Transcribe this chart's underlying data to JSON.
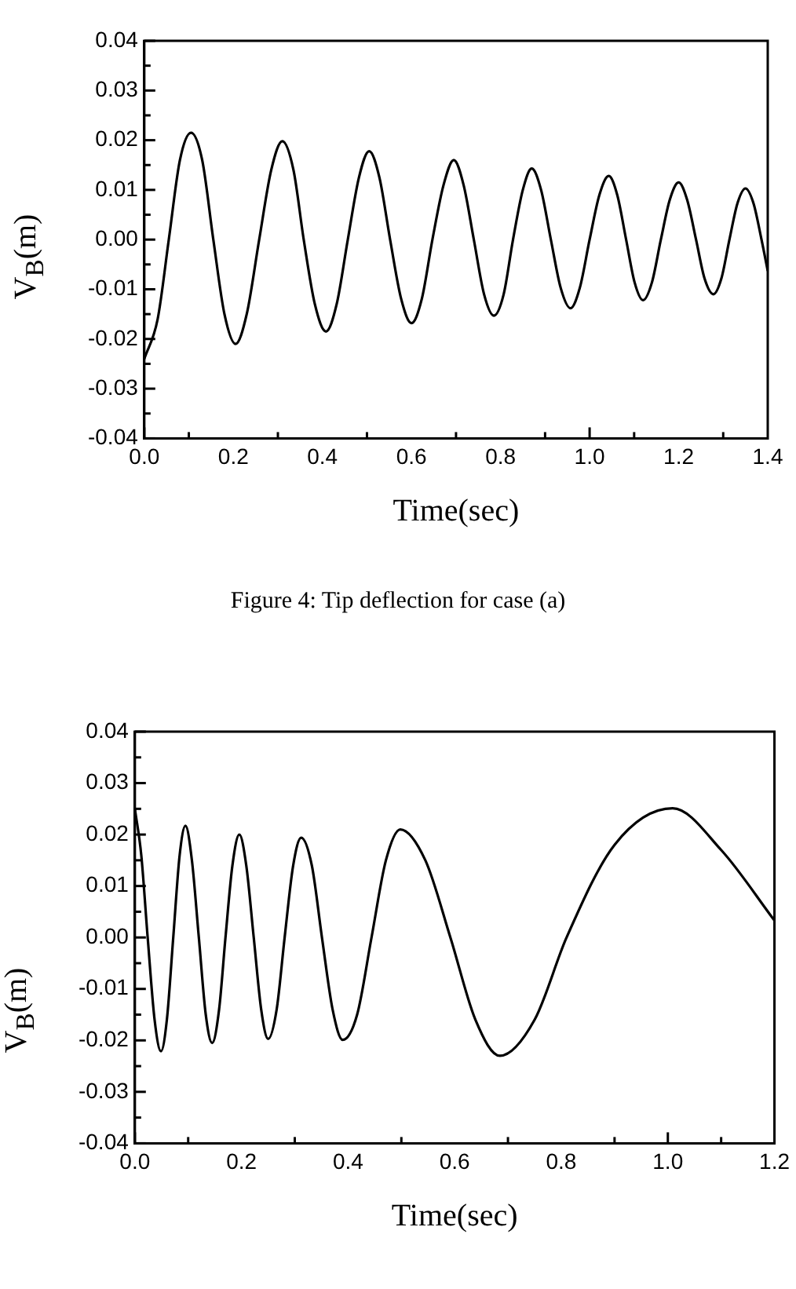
{
  "chart_data": [
    {
      "type": "line",
      "xlabel": "Time(sec)",
      "ylabel": "V$_{B}$(m)",
      "annotations": [
        "Figure 4: Tip deflection for case (a)"
      ],
      "grid": false,
      "legend": false,
      "marker": "none",
      "line_style": "solid",
      "xlim": [
        0,
        1.4
      ],
      "ylim": [
        -0.04,
        0.04
      ],
      "xticks": [
        {
          "value": 0,
          "label": "0.0"
        },
        {
          "value": 0.1,
          "label": null
        },
        0.2,
        {
          "value": 0.3,
          "label": null
        },
        0.4,
        {
          "value": 0.5,
          "label": null
        },
        0.6,
        {
          "value": 0.7,
          "label": null
        },
        0.8,
        {
          "value": 0.9,
          "label": null
        },
        {
          "value": 1,
          "label": "1.0"
        },
        {
          "value": 1.1,
          "label": null
        },
        1.2,
        {
          "value": 1.3,
          "label": null
        },
        1.4
      ],
      "yticks": [
        -0.04,
        {
          "value": -0.035,
          "label": null
        },
        -0.03,
        {
          "value": -0.025,
          "label": null
        },
        -0.02,
        {
          "value": -0.015,
          "label": null
        },
        -0.01,
        {
          "value": -0.005,
          "label": null
        },
        {
          "value": 0,
          "label": "0.00"
        },
        {
          "value": 0.005,
          "label": null
        },
        0.01,
        {
          "value": 0.015,
          "label": null
        },
        0.02,
        {
          "value": 0.025,
          "label": null
        },
        0.03,
        {
          "value": 0.035,
          "label": null
        },
        0.04
      ],
      "series": [
        {
          "color": "#000000",
          "x": [
            0,
            0.03,
            0.055,
            0.08,
            0.105,
            0.13,
            0.155,
            0.18,
            0.205,
            0.23,
            0.258,
            0.285,
            0.31,
            0.335,
            0.358,
            0.383,
            0.408,
            0.432,
            0.457,
            0.482,
            0.505,
            0.528,
            0.552,
            0.577,
            0.6,
            0.623,
            0.647,
            0.672,
            0.695,
            0.717,
            0.74,
            0.763,
            0.785,
            0.807,
            0.828,
            0.85,
            0.87,
            0.891,
            0.913,
            0.935,
            0.957,
            0.978,
            1.0,
            1.022,
            1.043,
            1.062,
            1.082,
            1.101,
            1.12,
            1.14,
            1.16,
            1.18,
            1.2,
            1.219,
            1.239,
            1.258,
            1.278,
            1.296,
            1.314,
            1.332,
            1.35,
            1.368,
            1.386,
            1.4
          ],
          "values": [
            -0.024,
            -0.016,
            0,
            0.016,
            0.0215,
            0.016,
            0,
            -0.015,
            -0.021,
            -0.015,
            0,
            0.014,
            0.0198,
            0.014,
            0,
            -0.013,
            -0.0185,
            -0.013,
            0,
            0.0125,
            0.0178,
            0.0125,
            0,
            -0.012,
            -0.0168,
            -0.012,
            0,
            0.011,
            0.016,
            0.011,
            0,
            -0.011,
            -0.0153,
            -0.011,
            0,
            0.01,
            0.0143,
            0.01,
            0,
            -0.0097,
            -0.0138,
            -0.0097,
            0,
            0.009,
            0.0128,
            0.009,
            0,
            -0.0086,
            -0.0122,
            -0.0086,
            0,
            0.008,
            0.0115,
            0.008,
            0,
            -0.0078,
            -0.011,
            -0.0078,
            0,
            0.0073,
            0.0103,
            0.0073,
            0,
            -0.0063
          ]
        }
      ]
    },
    {
      "type": "line",
      "xlabel": "Time(sec)",
      "ylabel": "V$_{B}$(m)",
      "grid": false,
      "legend": false,
      "marker": "none",
      "line_style": "solid",
      "xlim": [
        0,
        1.2
      ],
      "ylim": [
        -0.04,
        0.04
      ],
      "xticks": [
        {
          "value": 0,
          "label": "0.0"
        },
        {
          "value": 0.1,
          "label": null
        },
        0.2,
        {
          "value": 0.3,
          "label": null
        },
        0.4,
        {
          "value": 0.5,
          "label": null
        },
        0.6,
        {
          "value": 0.7,
          "label": null
        },
        0.8,
        {
          "value": 0.9,
          "label": null
        },
        {
          "value": 1,
          "label": "1.0"
        },
        {
          "value": 1.1,
          "label": null
        },
        1.2
      ],
      "yticks": [
        -0.04,
        {
          "value": -0.035,
          "label": null
        },
        -0.03,
        {
          "value": -0.025,
          "label": null
        },
        -0.02,
        {
          "value": -0.015,
          "label": null
        },
        -0.01,
        {
          "value": -0.005,
          "label": null
        },
        {
          "value": 0,
          "label": "0.00"
        },
        {
          "value": 0.005,
          "label": null
        },
        0.01,
        {
          "value": 0.015,
          "label": null
        },
        0.02,
        {
          "value": 0.025,
          "label": null
        },
        0.03,
        {
          "value": 0.035,
          "label": null
        },
        0.04
      ],
      "series": [
        {
          "color": "#000000",
          "x": [
            0,
            0.012,
            0.024,
            0.037,
            0.049,
            0.06,
            0.072,
            0.084,
            0.095,
            0.107,
            0.12,
            0.133,
            0.145,
            0.158,
            0.17,
            0.183,
            0.196,
            0.209,
            0.223,
            0.237,
            0.25,
            0.266,
            0.281,
            0.297,
            0.312,
            0.332,
            0.351,
            0.371,
            0.39,
            0.417,
            0.444,
            0.471,
            0.498,
            0.545,
            0.592,
            0.639,
            0.685,
            0.75,
            0.81,
            0.9,
            1.009,
            1.1,
            1.2
          ],
          "values": [
            0.025,
            0.016,
            0,
            -0.016,
            -0.0221,
            -0.016,
            0,
            0.016,
            0.0217,
            0.015,
            0,
            -0.015,
            -0.0205,
            -0.014,
            0,
            0.014,
            0.02,
            0.014,
            0,
            -0.014,
            -0.0197,
            -0.014,
            0,
            0.014,
            0.0194,
            0.014,
            0,
            -0.014,
            -0.0199,
            -0.015,
            0,
            0.015,
            0.021,
            0.015,
            0,
            -0.016,
            -0.023,
            -0.016,
            0,
            0.018,
            0.0251,
            0.017,
            0.0033
          ]
        }
      ]
    }
  ]
}
